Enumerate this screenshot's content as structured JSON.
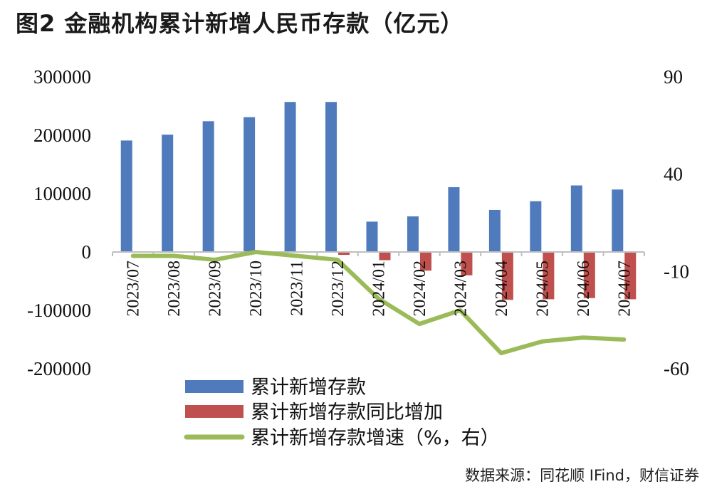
{
  "title": "图2  金融机构累计新增人民币存款（亿元）",
  "source": "数据来源：同花顺 IFind，财信证券",
  "chart_data": {
    "type": "bar",
    "categories": [
      "2023/07",
      "2023/08",
      "2023/09",
      "2023/10",
      "2023/11",
      "2023/12",
      "2024/01",
      "2024/02",
      "2024/03",
      "2024/04",
      "2024/05",
      "2024/06",
      "2024/07"
    ],
    "series": [
      {
        "name": "累计新增存款",
        "type": "bar",
        "axis": "left",
        "color": "#4F7BBC",
        "values": [
          191000,
          201000,
          224000,
          231000,
          257000,
          257000,
          52000,
          61000,
          111000,
          72000,
          87000,
          114000,
          107000
        ]
      },
      {
        "name": "累计新增存款同比增加",
        "type": "bar",
        "axis": "left",
        "color": "#C0504D",
        "values": [
          0,
          0,
          0,
          0,
          0,
          -5000,
          -14000,
          -32000,
          -40000,
          -82000,
          -81000,
          -79000,
          -81000
        ]
      },
      {
        "name": "累计新增存款增速（%，右）",
        "type": "line",
        "axis": "right",
        "color": "#9BBB59",
        "values": [
          -2,
          -2,
          -4,
          0,
          -2,
          -4,
          -24,
          -37,
          -30,
          -52,
          -46,
          -44,
          -45
        ]
      }
    ],
    "left_axis": {
      "min": -200000,
      "max": 300000,
      "ticks": [
        "300000",
        "200000",
        "100000",
        "0",
        "-100000",
        "-200000"
      ],
      "tick_values": [
        300000,
        200000,
        100000,
        0,
        -100000,
        -200000
      ]
    },
    "right_axis": {
      "min": -60,
      "max": 90,
      "ticks": [
        "90",
        "40",
        "-10",
        "-60"
      ],
      "tick_values": [
        90,
        40,
        -10,
        -60
      ]
    },
    "grid": false,
    "legend_position": "bottom"
  },
  "colors": {
    "bar_blue": "#4F7BBC",
    "bar_red": "#C0504D",
    "line_green": "#9BBB59",
    "axis": "#BFBFBF"
  }
}
